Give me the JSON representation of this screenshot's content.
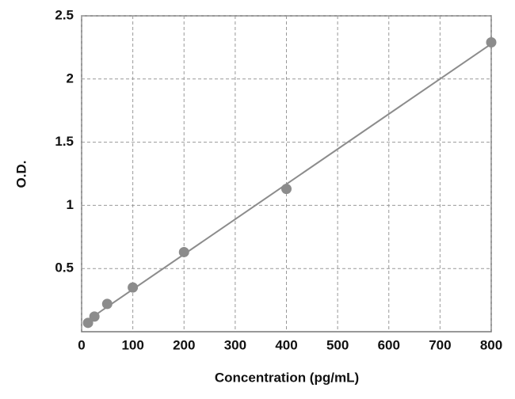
{
  "chart_data": {
    "type": "scatter",
    "x_label": "Concentration (pg/mL)",
    "y_label": "O.D.",
    "x": [
      12.5,
      25,
      50,
      100,
      200,
      400,
      800
    ],
    "values": [
      0.07,
      0.12,
      0.22,
      0.35,
      0.63,
      1.13,
      2.29
    ],
    "color": "#8c8c8c",
    "trendline": "linear",
    "xlim": [
      0,
      800
    ],
    "xticks": [
      0,
      100,
      200,
      300,
      400,
      500,
      600,
      700,
      800
    ],
    "ylim": [
      0,
      2.5
    ],
    "yticks": [
      0.5,
      1,
      1.5,
      2,
      2.5
    ],
    "grid": true
  }
}
